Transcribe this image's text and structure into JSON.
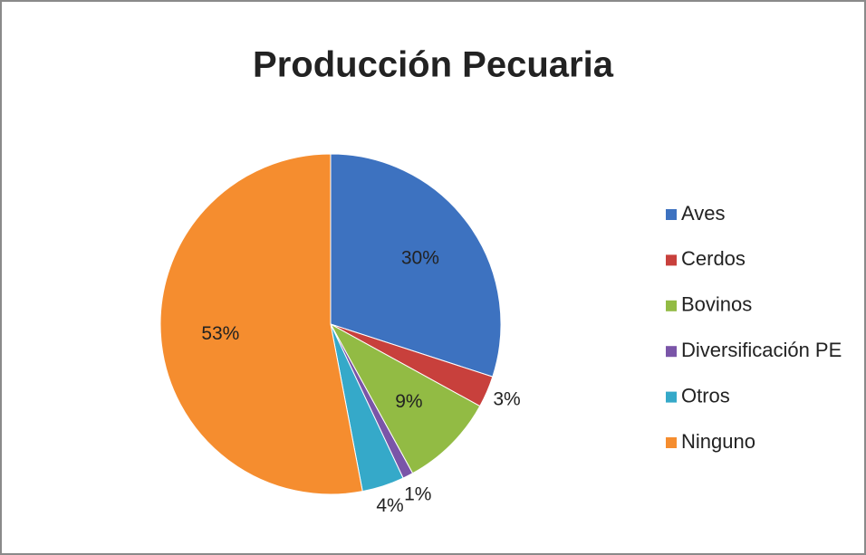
{
  "chart_data": {
    "type": "pie",
    "title": "Producción Pecuaria",
    "categories": [
      "Aves",
      "Cerdos",
      "Bovinos",
      "Diversificación PE",
      "Otros",
      "Ninguno"
    ],
    "values": [
      30,
      3,
      9,
      1,
      4,
      53
    ],
    "value_labels": [
      "30%",
      "3%",
      "9%",
      "1%",
      "4%",
      "53%"
    ],
    "colors": [
      "#3d72c0",
      "#c8403c",
      "#92bb44",
      "#7a55a8",
      "#35a9c9",
      "#f58d2f"
    ],
    "legend": "right"
  }
}
